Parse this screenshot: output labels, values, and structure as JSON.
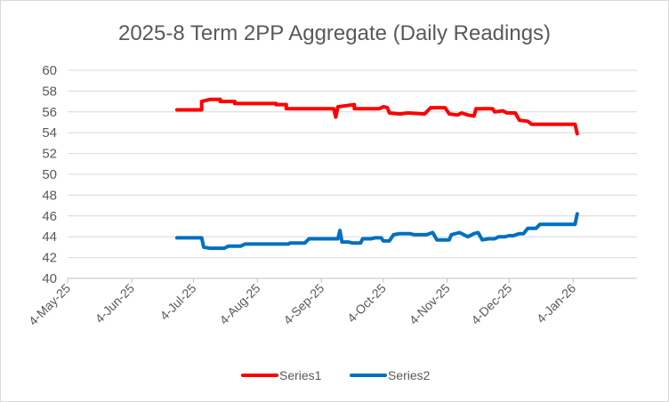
{
  "chart_data": {
    "type": "line",
    "title": "2025-8 Term 2PP Aggregate (Daily Readings)",
    "xlabel": "",
    "ylabel": "",
    "ylim": [
      40,
      60
    ],
    "yticks": [
      40,
      42,
      44,
      46,
      48,
      50,
      52,
      54,
      56,
      58,
      60
    ],
    "ytick_labels": [
      "40",
      "42",
      "44",
      "46",
      "48",
      "50",
      "52",
      "54",
      "56",
      "58",
      "60"
    ],
    "x_range": [
      "2025-05-04",
      "2026-02-04"
    ],
    "x_ticks": [
      "2025-05-04",
      "2025-06-04",
      "2025-07-04",
      "2025-08-04",
      "2025-09-04",
      "2025-10-04",
      "2025-11-04",
      "2025-12-04",
      "2026-01-04"
    ],
    "x_tick_labels": [
      "4-May-25",
      "4-Jun-25",
      "4-Jul-25",
      "4-Aug-25",
      "4-Sep-25",
      "4-Oct-25",
      "4-Nov-25",
      "4-Dec-25",
      "4-Jan-26"
    ],
    "grid": "horizontal",
    "legend_position": "bottom",
    "series": [
      {
        "name": "Series1",
        "color": "#ff0000",
        "points": [
          [
            "2025-06-26",
            56.2
          ],
          [
            "2025-07-08",
            56.2
          ],
          [
            "2025-07-08",
            57.0
          ],
          [
            "2025-07-10",
            57.1
          ],
          [
            "2025-07-12",
            57.2
          ],
          [
            "2025-07-17",
            57.2
          ],
          [
            "2025-07-17",
            57.0
          ],
          [
            "2025-07-24",
            57.0
          ],
          [
            "2025-07-24",
            56.8
          ],
          [
            "2025-08-13",
            56.8
          ],
          [
            "2025-08-13",
            56.7
          ],
          [
            "2025-08-18",
            56.7
          ],
          [
            "2025-08-18",
            56.3
          ],
          [
            "2025-09-10",
            56.3
          ],
          [
            "2025-09-11",
            55.5
          ],
          [
            "2025-09-12",
            56.5
          ],
          [
            "2025-09-16",
            56.6
          ],
          [
            "2025-09-20",
            56.7
          ],
          [
            "2025-09-20",
            56.3
          ],
          [
            "2025-10-02",
            56.3
          ],
          [
            "2025-10-04",
            56.5
          ],
          [
            "2025-10-06",
            56.4
          ],
          [
            "2025-10-07",
            55.9
          ],
          [
            "2025-10-12",
            55.8
          ],
          [
            "2025-10-16",
            55.9
          ],
          [
            "2025-10-24",
            55.8
          ],
          [
            "2025-10-27",
            56.4
          ],
          [
            "2025-11-03",
            56.4
          ],
          [
            "2025-11-05",
            55.8
          ],
          [
            "2025-11-09",
            55.7
          ],
          [
            "2025-11-11",
            55.9
          ],
          [
            "2025-11-14",
            55.7
          ],
          [
            "2025-11-17",
            55.6
          ],
          [
            "2025-11-18",
            56.3
          ],
          [
            "2025-11-26",
            56.3
          ],
          [
            "2025-11-27",
            56.0
          ],
          [
            "2025-12-01",
            56.1
          ],
          [
            "2025-12-03",
            55.9
          ],
          [
            "2025-12-07",
            55.9
          ],
          [
            "2025-12-09",
            55.2
          ],
          [
            "2025-12-13",
            55.1
          ],
          [
            "2025-12-15",
            54.8
          ],
          [
            "2026-01-05",
            54.8
          ],
          [
            "2026-01-06",
            53.9
          ]
        ]
      },
      {
        "name": "Series2",
        "color": "#0070c0",
        "points": [
          [
            "2025-06-26",
            43.9
          ],
          [
            "2025-07-08",
            43.9
          ],
          [
            "2025-07-09",
            43.0
          ],
          [
            "2025-07-12",
            42.9
          ],
          [
            "2025-07-19",
            42.9
          ],
          [
            "2025-07-21",
            43.1
          ],
          [
            "2025-07-27",
            43.1
          ],
          [
            "2025-07-29",
            43.3
          ],
          [
            "2025-08-19",
            43.3
          ],
          [
            "2025-08-20",
            43.4
          ],
          [
            "2025-08-27",
            43.4
          ],
          [
            "2025-08-29",
            43.8
          ],
          [
            "2025-09-12",
            43.8
          ],
          [
            "2025-09-13",
            44.6
          ],
          [
            "2025-09-14",
            43.5
          ],
          [
            "2025-09-17",
            43.5
          ],
          [
            "2025-09-19",
            43.4
          ],
          [
            "2025-09-23",
            43.4
          ],
          [
            "2025-09-24",
            43.8
          ],
          [
            "2025-09-28",
            43.8
          ],
          [
            "2025-09-30",
            43.9
          ],
          [
            "2025-10-03",
            43.9
          ],
          [
            "2025-10-04",
            43.6
          ],
          [
            "2025-10-07",
            43.6
          ],
          [
            "2025-10-09",
            44.2
          ],
          [
            "2025-10-12",
            44.3
          ],
          [
            "2025-10-17",
            44.3
          ],
          [
            "2025-10-19",
            44.2
          ],
          [
            "2025-10-25",
            44.2
          ],
          [
            "2025-10-28",
            44.4
          ],
          [
            "2025-10-30",
            43.7
          ],
          [
            "2025-11-05",
            43.7
          ],
          [
            "2025-11-06",
            44.2
          ],
          [
            "2025-11-10",
            44.4
          ],
          [
            "2025-11-14",
            44.0
          ],
          [
            "2025-11-17",
            44.3
          ],
          [
            "2025-11-19",
            44.4
          ],
          [
            "2025-11-21",
            43.7
          ],
          [
            "2025-11-24",
            43.8
          ],
          [
            "2025-11-27",
            43.8
          ],
          [
            "2025-11-29",
            44.0
          ],
          [
            "2025-12-02",
            44.0
          ],
          [
            "2025-12-04",
            44.1
          ],
          [
            "2025-12-06",
            44.1
          ],
          [
            "2025-12-09",
            44.3
          ],
          [
            "2025-12-11",
            44.3
          ],
          [
            "2025-12-13",
            44.8
          ],
          [
            "2025-12-17",
            44.8
          ],
          [
            "2025-12-19",
            45.2
          ],
          [
            "2026-01-05",
            45.2
          ],
          [
            "2026-01-06",
            46.2
          ]
        ]
      }
    ]
  }
}
